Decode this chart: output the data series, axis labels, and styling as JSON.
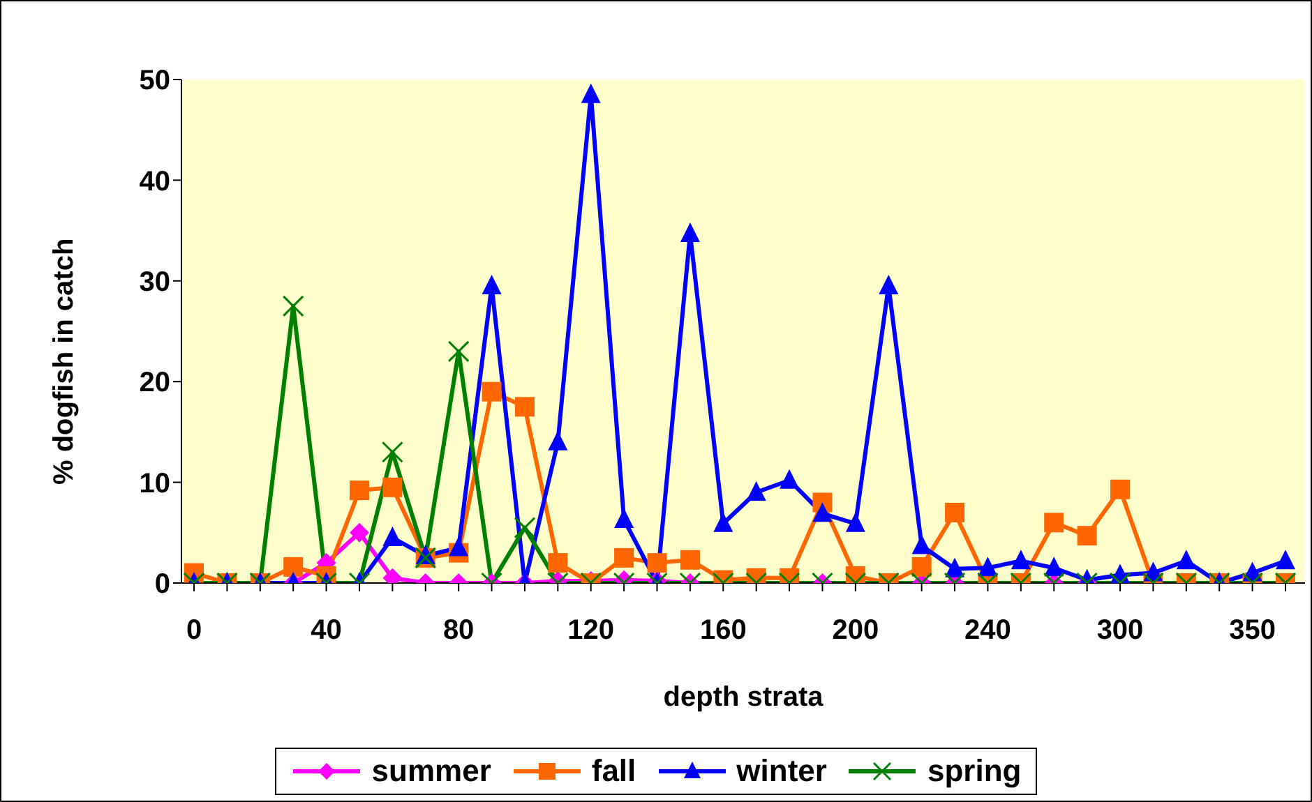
{
  "chart_data": {
    "type": "line",
    "xlabel": "depth strata",
    "ylabel": "% dogfish in catch",
    "categories": [
      "0",
      null,
      null,
      null,
      "40",
      null,
      null,
      null,
      "80",
      null,
      null,
      null,
      "120",
      null,
      null,
      null,
      "160",
      null,
      null,
      null,
      "200",
      null,
      null,
      null,
      "240",
      null,
      null,
      null,
      "300",
      null,
      null,
      null,
      "350",
      null
    ],
    "series": [
      {
        "name": "summer",
        "color": "#ff00ff",
        "marker": "diamond",
        "values": [
          null,
          null,
          0,
          0,
          2,
          5,
          0.5,
          0,
          0,
          0,
          0,
          0.2,
          0.2,
          0.3,
          0.2,
          0,
          0,
          0,
          0,
          0,
          0,
          0,
          0,
          0,
          0,
          0,
          0,
          0,
          0,
          null,
          null,
          null,
          null,
          null
        ]
      },
      {
        "name": "fall",
        "color": "#ff6600",
        "marker": "square",
        "values": [
          1,
          0,
          0,
          1.6,
          0.7,
          9.2,
          9.5,
          2.5,
          3,
          19,
          17.5,
          2,
          0,
          2.5,
          2,
          2.3,
          0.3,
          0.5,
          0.5,
          8,
          0.7,
          0,
          1.6,
          7,
          0,
          0,
          6,
          4.7,
          9.3,
          0,
          0,
          0,
          0,
          0
        ]
      },
      {
        "name": "winter",
        "color": "#0000ff",
        "marker": "triangle",
        "values": [
          0,
          0,
          0,
          0,
          0,
          0,
          4.5,
          2.7,
          3.5,
          29.5,
          0,
          14,
          48.5,
          6.3,
          0,
          34.7,
          5.9,
          9,
          10.2,
          6.9,
          5.9,
          29.5,
          3.7,
          1.4,
          1.5,
          2.2,
          1.5,
          0.3,
          0.8,
          1,
          2.2,
          0,
          1,
          2.2
        ]
      },
      {
        "name": "spring",
        "color": "#008000",
        "marker": "cross",
        "values": [
          0,
          0,
          0,
          27.5,
          0,
          0,
          13,
          2.5,
          23,
          0,
          5.5,
          0,
          0,
          0,
          0,
          0,
          0,
          0,
          0,
          0,
          0,
          0,
          0,
          0,
          0,
          0,
          0,
          0,
          0,
          0,
          0,
          0,
          0,
          0
        ]
      }
    ],
    "ylim": [
      0,
      50
    ],
    "yticks": [
      0,
      10,
      20,
      30,
      40,
      50
    ],
    "grid": false,
    "legend": "bottom",
    "line_style": "solid"
  }
}
